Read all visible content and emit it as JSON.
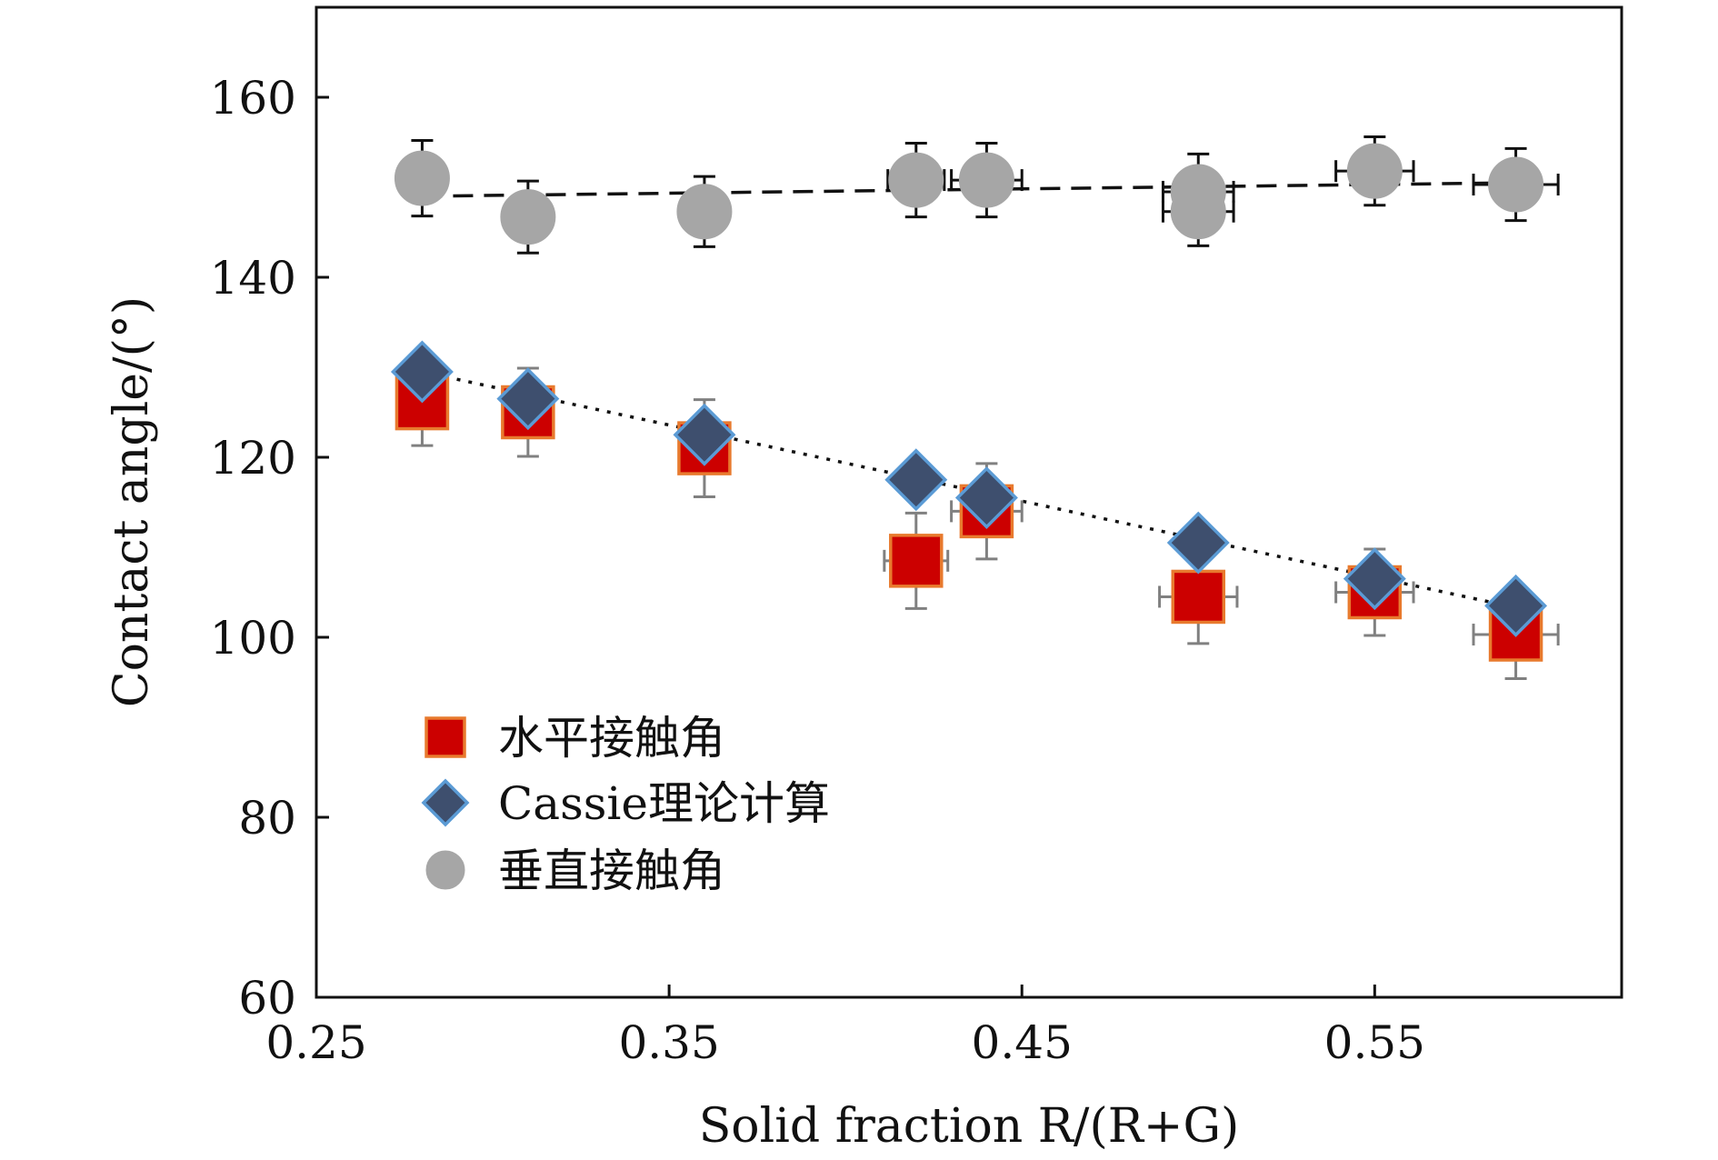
{
  "chart_data": {
    "type": "scatter",
    "xlabel": "Solid fraction R/(R+G)",
    "ylabel": "Contact angle/(°)",
    "xlim": [
      0.25,
      0.62
    ],
    "ylim": [
      60,
      170
    ],
    "x_ticks": [
      0.25,
      0.35,
      0.45,
      0.55
    ],
    "x_tick_labels": [
      "0.25",
      "0.35",
      "0.45",
      "0.55"
    ],
    "y_ticks": [
      60,
      80,
      100,
      120,
      140,
      160
    ],
    "y_tick_labels": [
      "60",
      "80",
      "100",
      "120",
      "140",
      "160"
    ],
    "legend_position": "lower-left",
    "series": [
      {
        "name": "水平接触角",
        "marker": "square",
        "fill": "#cc0000",
        "stroke": "#e87a2e",
        "errorbar_color": "#808080",
        "points": [
          {
            "x": 0.28,
            "y": 126,
            "yerr": 4.7,
            "xerr": 0
          },
          {
            "x": 0.31,
            "y": 125,
            "yerr": 4.9,
            "xerr": 0
          },
          {
            "x": 0.36,
            "y": 121,
            "yerr": 5.4,
            "xerr": 0
          },
          {
            "x": 0.42,
            "y": 108.5,
            "yerr": 5.3,
            "xerr": 0.009
          },
          {
            "x": 0.44,
            "y": 114,
            "yerr": 5.3,
            "xerr": 0.01
          },
          {
            "x": 0.5,
            "y": 104.5,
            "yerr": 5.2,
            "xerr": 0.011
          },
          {
            "x": 0.55,
            "y": 105,
            "yerr": 4.8,
            "xerr": 0.011
          },
          {
            "x": 0.59,
            "y": 100.3,
            "yerr": 4.9,
            "xerr": 0.012
          }
        ]
      },
      {
        "name": "Cassie理论计算",
        "marker": "diamond",
        "fill": "#3e4f6e",
        "stroke": "#5b9bd5",
        "points": [
          {
            "x": 0.28,
            "y": 129.5
          },
          {
            "x": 0.31,
            "y": 126.5
          },
          {
            "x": 0.36,
            "y": 122.5
          },
          {
            "x": 0.42,
            "y": 117.5
          },
          {
            "x": 0.44,
            "y": 115.5
          },
          {
            "x": 0.5,
            "y": 110.5
          },
          {
            "x": 0.55,
            "y": 106.5
          },
          {
            "x": 0.59,
            "y": 103.5
          }
        ]
      },
      {
        "name": "垂直接触角",
        "marker": "circle",
        "fill": "#a6a6a6",
        "stroke": "#a6a6a6",
        "errorbar_color": "#111111",
        "points": [
          {
            "x": 0.28,
            "y": 151,
            "yerr": 4.2,
            "xerr": 0
          },
          {
            "x": 0.31,
            "y": 146.7,
            "yerr": 4.0,
            "xerr": 0
          },
          {
            "x": 0.36,
            "y": 147.3,
            "yerr": 3.9,
            "xerr": 0
          },
          {
            "x": 0.42,
            "y": 150.8,
            "yerr": 4.1,
            "xerr": 0.008
          },
          {
            "x": 0.44,
            "y": 150.8,
            "yerr": 4.1,
            "xerr": 0.01
          },
          {
            "x": 0.5,
            "y": 149.5,
            "yerr": 4.2,
            "xerr": 0.01
          },
          {
            "x": 0.5,
            "y": 147.3,
            "yerr": 3.8,
            "xerr": 0.01
          },
          {
            "x": 0.55,
            "y": 151.8,
            "yerr": 3.8,
            "xerr": 0.011
          },
          {
            "x": 0.59,
            "y": 150.3,
            "yerr": 4.0,
            "xerr": 0.012
          }
        ]
      }
    ],
    "fit_lines": [
      {
        "name": "vertical-fit",
        "style": "dashed",
        "color": "#111111",
        "x": [
          0.28,
          0.59
        ],
        "y": [
          149,
          150.5
        ]
      },
      {
        "name": "cassie-fit",
        "style": "dotted",
        "color": "#111111",
        "x": [
          0.28,
          0.59
        ],
        "y": [
          129.5,
          103.3
        ]
      }
    ]
  }
}
